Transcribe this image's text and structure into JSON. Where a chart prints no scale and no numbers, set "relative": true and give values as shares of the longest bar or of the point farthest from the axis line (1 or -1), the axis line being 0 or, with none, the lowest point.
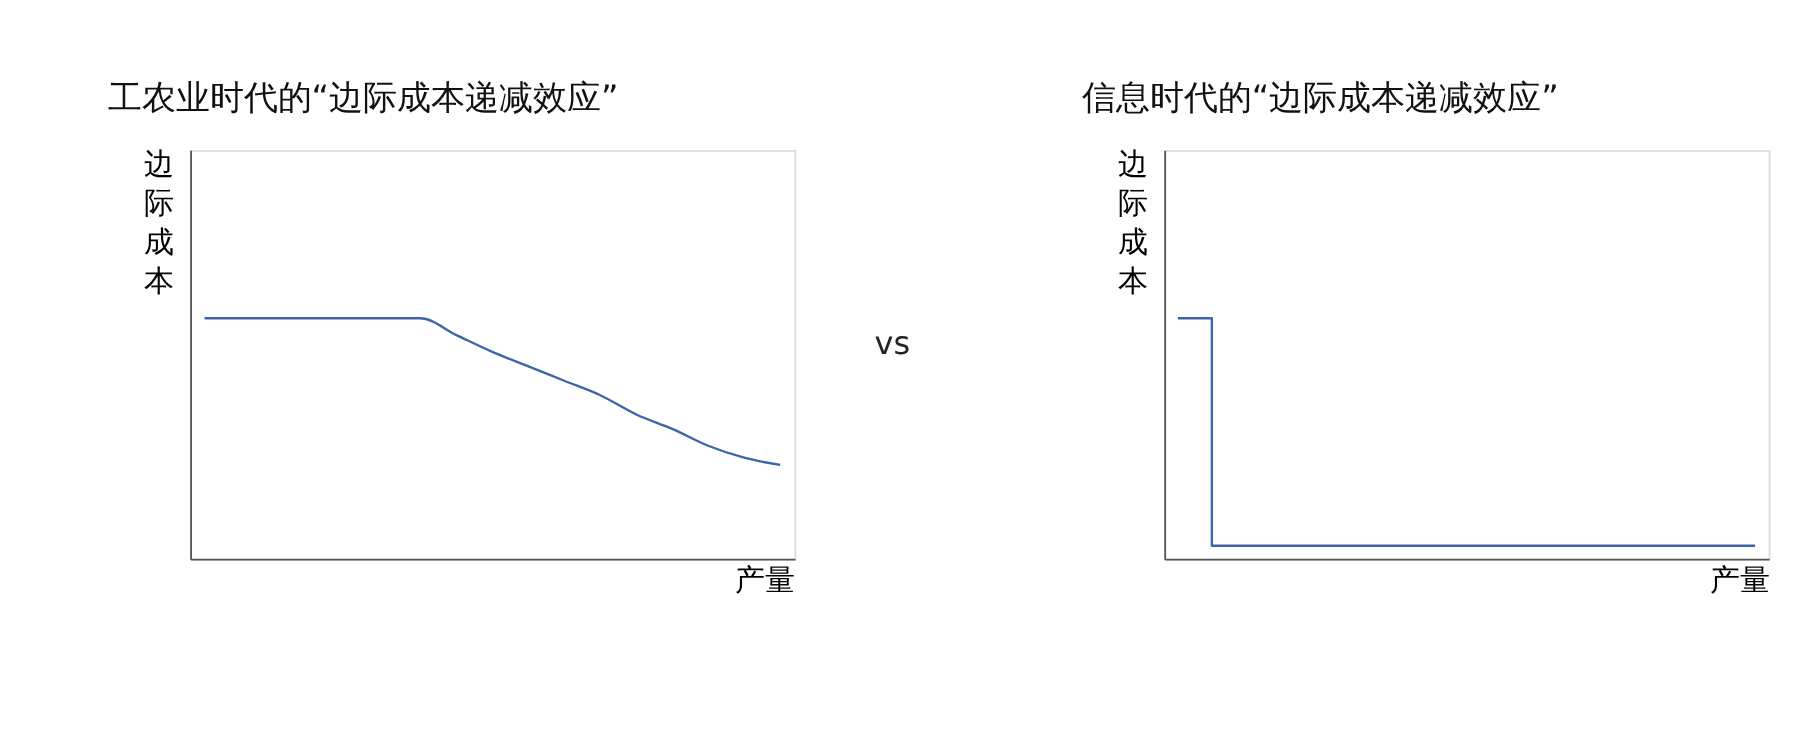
{
  "chart_data": [
    {
      "type": "line",
      "title": "工农业时代的“边际成本递减效应”",
      "ylabel": "边际成本",
      "xlabel": "产量",
      "relative": true,
      "grid": false,
      "legend": false,
      "marker": "none",
      "line_style": "solid",
      "categories": [
        null,
        null,
        null,
        null,
        null,
        null,
        null,
        null,
        null,
        null,
        null,
        null,
        null,
        null,
        null,
        null,
        null
      ],
      "series": [
        {
          "color": "#3c64a8",
          "values": [
            1,
            1,
            1,
            1,
            1,
            1,
            1,
            0.93,
            0.86,
            0.8,
            0.74,
            0.68,
            0.6,
            0.54,
            0.47,
            0.42,
            0.39
          ]
        }
      ],
      "annotations": [
        "vs"
      ]
    },
    {
      "type": "step",
      "title": "信息时代的“边际成本递减效应”",
      "ylabel": "边际成本",
      "xlabel": "产量",
      "relative": true,
      "grid": false,
      "legend": false,
      "marker": "none",
      "line_style": "solid",
      "categories": [
        null,
        null,
        null,
        null,
        null,
        null,
        null,
        null,
        null,
        null,
        null,
        null,
        null,
        null,
        null,
        null,
        null,
        null
      ],
      "series": [
        {
          "color": "#3c64a8",
          "values": [
            1,
            0.054,
            0.054,
            0.054,
            0.054,
            0.054,
            0.054,
            0.054,
            0.054,
            0.054,
            0.054,
            0.054,
            0.054,
            0.054,
            0.054,
            0.054,
            0.054,
            0.054
          ]
        }
      ]
    }
  ]
}
